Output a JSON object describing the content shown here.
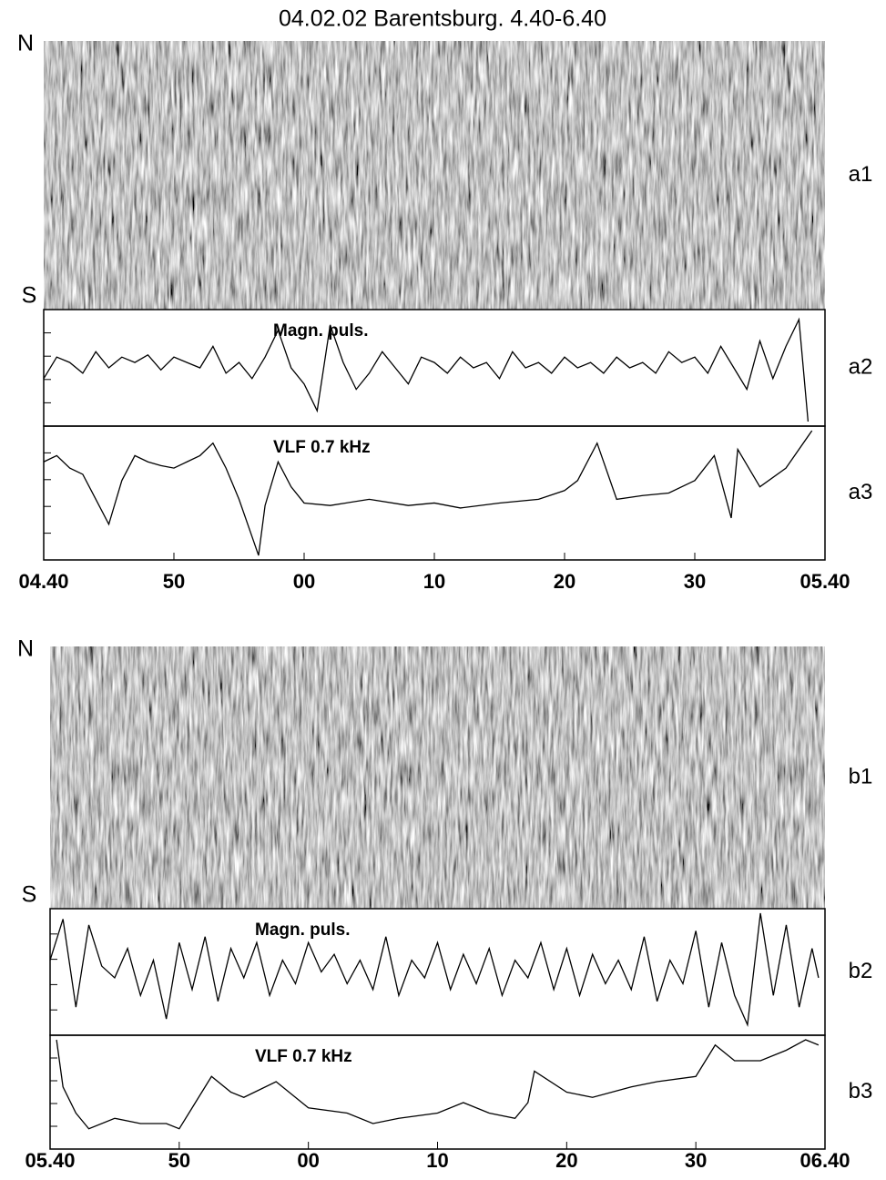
{
  "chart_data": [
    {
      "type": "line",
      "title": "04.02.02 Barentsburg. 4.40-6.40",
      "keogram": {
        "top": "N",
        "bottom": "S",
        "label": "a1"
      },
      "xlim": [
        0,
        60
      ],
      "xticks": [
        {
          "value": 0,
          "label": "04.40"
        },
        {
          "value": 10,
          "label": "50"
        },
        {
          "value": 20,
          "label": "00"
        },
        {
          "value": 30,
          "label": "10"
        },
        {
          "value": 40,
          "label": "20"
        },
        {
          "value": 50,
          "label": "30"
        },
        {
          "value": 60,
          "label": "05.40"
        }
      ],
      "ylim": [
        0,
        100
      ],
      "series": [
        {
          "name": "Magn. puls.",
          "label": "a2",
          "color": "#000000",
          "x": [
            0,
            1,
            2,
            3,
            4,
            5,
            6,
            7,
            8,
            9,
            10,
            11,
            12,
            13,
            14,
            15,
            16,
            17,
            18,
            19,
            20,
            21,
            22,
            23,
            24,
            25,
            26,
            27,
            28,
            29,
            30,
            31,
            32,
            33,
            34,
            35,
            36,
            37,
            38,
            39,
            40,
            41,
            42,
            43,
            44,
            45,
            46,
            47,
            48,
            49,
            50,
            51,
            52,
            53,
            54,
            55,
            56,
            57,
            58,
            58.7
          ],
          "values": [
            40,
            60,
            55,
            45,
            65,
            50,
            60,
            55,
            62,
            48,
            60,
            55,
            50,
            70,
            45,
            55,
            40,
            60,
            85,
            50,
            35,
            10,
            90,
            55,
            30,
            45,
            65,
            50,
            35,
            60,
            55,
            45,
            60,
            50,
            55,
            40,
            65,
            50,
            55,
            45,
            60,
            50,
            55,
            45,
            60,
            50,
            55,
            45,
            65,
            55,
            60,
            45,
            70,
            50,
            30,
            75,
            40,
            70,
            95,
            0
          ]
        },
        {
          "name": "VLF 0.7 kHz",
          "label": "a3",
          "color": "#000000",
          "x": [
            0,
            1,
            2,
            3,
            4,
            5,
            6,
            7,
            8,
            9,
            10,
            11,
            12,
            13,
            14,
            15,
            16,
            16.5,
            17,
            18,
            19,
            20,
            22,
            25,
            28,
            30,
            32,
            35,
            38,
            40,
            41,
            42.5,
            44,
            46,
            48,
            50,
            51.5,
            52.8,
            53.3,
            55,
            57,
            59
          ],
          "values": [
            75,
            80,
            70,
            65,
            45,
            25,
            60,
            80,
            75,
            72,
            70,
            75,
            80,
            90,
            70,
            45,
            15,
            0,
            40,
            75,
            55,
            42,
            40,
            45,
            40,
            42,
            38,
            42,
            45,
            52,
            60,
            90,
            45,
            48,
            50,
            60,
            80,
            30,
            85,
            55,
            70,
            100
          ]
        }
      ]
    },
    {
      "type": "line",
      "keogram": {
        "top": "N",
        "bottom": "S",
        "label": "b1"
      },
      "xlim": [
        0,
        60
      ],
      "xticks": [
        {
          "value": 0,
          "label": "05.40"
        },
        {
          "value": 10,
          "label": "50"
        },
        {
          "value": 20,
          "label": "00"
        },
        {
          "value": 30,
          "label": "10"
        },
        {
          "value": 40,
          "label": "20"
        },
        {
          "value": 50,
          "label": "30"
        },
        {
          "value": 60,
          "label": "06.40"
        }
      ],
      "ylim": [
        0,
        100
      ],
      "series": [
        {
          "name": "Magn. puls.",
          "label": "b2",
          "color": "#000000",
          "x": [
            0,
            1,
            2,
            3,
            4,
            5,
            6,
            7,
            8,
            9,
            10,
            11,
            12,
            13,
            14,
            15,
            16,
            17,
            18,
            19,
            20,
            21,
            22,
            23,
            24,
            25,
            26,
            27,
            28,
            29,
            30,
            31,
            32,
            33,
            34,
            35,
            36,
            37,
            38,
            39,
            40,
            41,
            42,
            43,
            44,
            45,
            46,
            47,
            48,
            49,
            50,
            51,
            52,
            53,
            54,
            55,
            56,
            57,
            58,
            59,
            59.5
          ],
          "values": [
            60,
            95,
            20,
            90,
            55,
            45,
            70,
            30,
            60,
            10,
            75,
            35,
            80,
            25,
            70,
            45,
            75,
            30,
            60,
            40,
            75,
            50,
            65,
            40,
            60,
            35,
            80,
            30,
            60,
            45,
            75,
            35,
            65,
            40,
            70,
            30,
            60,
            45,
            75,
            35,
            70,
            30,
            65,
            40,
            60,
            35,
            80,
            25,
            60,
            40,
            85,
            20,
            75,
            30,
            5,
            100,
            30,
            90,
            20,
            70,
            45
          ]
        },
        {
          "name": "VLF 0.7 kHz",
          "label": "b3",
          "color": "#000000",
          "x": [
            0.5,
            1,
            2,
            3,
            5,
            7,
            9,
            10,
            11,
            12.5,
            14,
            15,
            17.5,
            19,
            20,
            23,
            25,
            27,
            30,
            32,
            34,
            36,
            37,
            37.5,
            40,
            42,
            45,
            47,
            50,
            51.5,
            53,
            55,
            57,
            58.5,
            59.5
          ],
          "values": [
            100,
            55,
            30,
            15,
            25,
            20,
            20,
            15,
            35,
            65,
            50,
            45,
            60,
            45,
            35,
            30,
            20,
            25,
            30,
            40,
            30,
            25,
            40,
            70,
            50,
            45,
            55,
            60,
            65,
            95,
            80,
            80,
            90,
            100,
            95
          ]
        }
      ]
    }
  ]
}
